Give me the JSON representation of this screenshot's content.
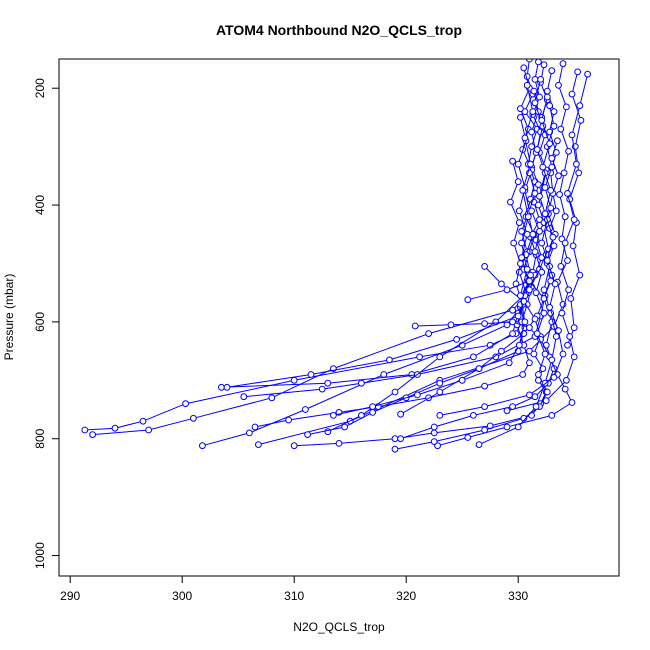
{
  "chart_data": {
    "type": "line",
    "title": "ATOM4 Northbound N2O_QCLS_trop",
    "xlabel": "N2O_QCLS_trop",
    "ylabel": "Pressure (mbar)",
    "xlim": [
      289,
      339
    ],
    "ylim": [
      1035,
      150
    ],
    "y_reversed": true,
    "x_ticks": [
      290,
      300,
      310,
      320,
      330
    ],
    "y_ticks": [
      200,
      400,
      600,
      800,
      1000
    ],
    "colors": {
      "series": "#0000ff",
      "axis": "#000000"
    },
    "marker": "open-circle",
    "series": [
      {
        "x": [
          331.0,
          330.8,
          331.3,
          330.6,
          331.7,
          331.2,
          330.9,
          331.5,
          331.1,
          330.7,
          331.4,
          331.0,
          330.5,
          331.2,
          330.8,
          330.3,
          329.8,
          327.5,
          321.2,
          310.0,
          300.3,
          296.5,
          294.0,
          291.3
        ],
        "y": [
          150,
          180,
          210,
          240,
          270,
          300,
          330,
          360,
          390,
          420,
          450,
          480,
          510,
          540,
          570,
          600,
          620,
          640,
          660,
          700,
          740,
          770,
          782,
          785
        ]
      },
      {
        "x": [
          331.8,
          331.5,
          331.9,
          331.3,
          332.0,
          331.7,
          331.2,
          331.8,
          331.4,
          331.9,
          331.1,
          331.6,
          331.3,
          330.8,
          330.2,
          329.0,
          325.0,
          318.0,
          311.0,
          306.0,
          301.8
        ],
        "y": [
          155,
          185,
          215,
          245,
          275,
          305,
          335,
          365,
          395,
          425,
          455,
          485,
          515,
          545,
          575,
          605,
          640,
          690,
          750,
          790,
          812
        ]
      },
      {
        "x": [
          332.3,
          332.0,
          332.6,
          332.1,
          332.4,
          331.9,
          332.5,
          332.2,
          331.8,
          332.3,
          331.6,
          332.1,
          331.5,
          330.9,
          329.5,
          322.0,
          313.5,
          308.0,
          301.0,
          297.0,
          292.0
        ],
        "y": [
          160,
          190,
          220,
          250,
          280,
          310,
          340,
          370,
          400,
          430,
          460,
          490,
          520,
          550,
          580,
          620,
          680,
          730,
          765,
          785,
          793
        ]
      },
      {
        "x": [
          330.5,
          331.0,
          330.2,
          330.9,
          330.4,
          331.2,
          330.6,
          331.0,
          330.3,
          330.8,
          330.1,
          330.7,
          330.0,
          329.5,
          326.0,
          320.5,
          313.0,
          303.5
        ],
        "y": [
          165,
          200,
          235,
          270,
          305,
          340,
          375,
          410,
          445,
          480,
          515,
          550,
          585,
          620,
          660,
          690,
          705,
          712
        ]
      },
      {
        "x": [
          333.0,
          332.6,
          333.2,
          332.8,
          333.4,
          332.9,
          333.1,
          332.7,
          333.3,
          332.5,
          333.0,
          332.4,
          332.0,
          331.5,
          328.0,
          321.0,
          316.0,
          312.5,
          305.5
        ],
        "y": [
          170,
          205,
          240,
          275,
          310,
          345,
          380,
          415,
          450,
          485,
          520,
          555,
          590,
          625,
          660,
          690,
          705,
          715,
          728
        ]
      },
      {
        "x": [
          334.0,
          333.6,
          334.3,
          333.8,
          334.5,
          334.1,
          333.7,
          334.2,
          333.9,
          334.4,
          333.5,
          334.0,
          333.2,
          331.0,
          323.0,
          315.0,
          306.8
        ],
        "y": [
          158,
          195,
          232,
          270,
          308,
          345,
          382,
          420,
          458,
          495,
          532,
          570,
          608,
          650,
          700,
          770,
          810
        ]
      },
      {
        "x": [
          335.3,
          334.8,
          335.6,
          335.1,
          335.4,
          334.6,
          335.2,
          334.9,
          335.5,
          334.7,
          335.0,
          334.4
        ],
        "y": [
          172,
          210,
          255,
          300,
          345,
          390,
          430,
          470,
          520,
          560,
          610,
          640
        ]
      },
      {
        "x": [
          336.2,
          335.5,
          334.8,
          335.2,
          334.4,
          335.0,
          334.2,
          333.8,
          334.5,
          333.9,
          334.6,
          335.0,
          334.3,
          332.5,
          329.0
        ],
        "y": [
          176,
          230,
          280,
          330,
          380,
          425,
          465,
          505,
          545,
          585,
          625,
          660,
          700,
          735,
          752
        ]
      },
      {
        "x": [
          329.5,
          330.0,
          329.3,
          330.1,
          329.6,
          330.2,
          329.8,
          330.4,
          329.9,
          330.5,
          331.0,
          330.4,
          327.0,
          322.0,
          317.5,
          314.0,
          309.5,
          306.5
        ],
        "y": [
          325,
          360,
          395,
          430,
          465,
          500,
          535,
          570,
          605,
          640,
          670,
          690,
          710,
          730,
          745,
          755,
          768,
          780
        ]
      },
      {
        "x": [
          332.8,
          333.2,
          332.6,
          333.0,
          332.4,
          332.9,
          332.3,
          332.7,
          331.9,
          331.0,
          328.0,
          323.0,
          319.0,
          316.0,
          313.0
        ],
        "y": [
          230,
          265,
          300,
          335,
          370,
          405,
          440,
          475,
          510,
          545,
          600,
          660,
          720,
          760,
          788
        ]
      },
      {
        "x": [
          331.4,
          331.8,
          331.2,
          331.6,
          331.0,
          331.5,
          330.9,
          331.3,
          330.7,
          331.1,
          330.6,
          330.0,
          324.5,
          318.5,
          311.5,
          304.0
        ],
        "y": [
          205,
          240,
          275,
          310,
          345,
          380,
          415,
          450,
          485,
          520,
          555,
          590,
          630,
          665,
          690,
          712
        ]
      },
      {
        "x": [
          330.2,
          330.7,
          330.0,
          330.6,
          330.1,
          330.8,
          330.3,
          330.9,
          330.2,
          330.6,
          330.0,
          326.5,
          323.0,
          320.0,
          317.0,
          314.5,
          311.2
        ],
        "y": [
          250,
          290,
          330,
          370,
          410,
          450,
          490,
          530,
          570,
          610,
          650,
          680,
          705,
          730,
          755,
          780,
          793
        ]
      },
      {
        "x": [
          333.5,
          333.0,
          333.6,
          333.1,
          333.4,
          332.8,
          333.2,
          332.6,
          332.9,
          332.3,
          331.7,
          330.5,
          328.5,
          326.5,
          323.0,
          319.5
        ],
        "y": [
          290,
          320,
          350,
          380,
          410,
          440,
          470,
          500,
          530,
          560,
          590,
          620,
          650,
          680,
          720,
          758
        ]
      },
      {
        "x": [
          327.0,
          328.5,
          330.5,
          331.5,
          332.0,
          331.4,
          332.2,
          331.8,
          332.5,
          332.0,
          331.2,
          327.5,
          322.5,
          319.0,
          314.0,
          310.0
        ],
        "y": [
          505,
          535,
          565,
          595,
          625,
          655,
          680,
          700,
          720,
          740,
          760,
          778,
          790,
          800,
          808,
          812
        ]
      },
      {
        "x": [
          325.5,
          329.0,
          331.0,
          332.3,
          333.0,
          332.5,
          333.2,
          332.7,
          331.5,
          329.5,
          326.0,
          322.5,
          319.5
        ],
        "y": [
          562,
          545,
          530,
          560,
          600,
          640,
          680,
          705,
          728,
          745,
          760,
          780,
          800
        ]
      },
      {
        "x": [
          320.8,
          324.0,
          327.0,
          329.5,
          331.0,
          332.0,
          332.8,
          333.5,
          334.2,
          334.8,
          333.0,
          329.0,
          325.5,
          322.8
        ],
        "y": [
          607,
          605,
          603,
          600,
          610,
          630,
          660,
          690,
          715,
          738,
          760,
          780,
          798,
          812
        ]
      },
      {
        "x": [
          331.2,
          331.9,
          331.5,
          332.1,
          331.6,
          332.3,
          331.7,
          332.4,
          331.8,
          332.6,
          331.9,
          330.5,
          327.0,
          322.5,
          319.0
        ],
        "y": [
          410,
          445,
          480,
          515,
          550,
          585,
          620,
          655,
          690,
          720,
          745,
          765,
          785,
          805,
          818
        ]
      },
      {
        "x": [
          332.0,
          331.5,
          332.2,
          331.7,
          332.4,
          331.9,
          332.6,
          332.1,
          332.8,
          332.3,
          332.9,
          333.4,
          333.0,
          332.4,
          331.6,
          330.0,
          326.5
        ],
        "y": [
          185,
          225,
          265,
          305,
          345,
          385,
          425,
          465,
          505,
          545,
          585,
          625,
          665,
          705,
          745,
          780,
          810
        ]
      },
      {
        "x": [
          330.8,
          331.3,
          330.6,
          331.1,
          330.4,
          330.9,
          330.3,
          330.8,
          330.2,
          330.6,
          330.1,
          329.2,
          325.0,
          321.0,
          317.0,
          313.5
        ],
        "y": [
          195,
          240,
          285,
          330,
          375,
          420,
          465,
          510,
          555,
          600,
          640,
          670,
          700,
          725,
          745,
          760
        ]
      },
      {
        "x": [
          332.6,
          332.1,
          332.8,
          332.2,
          332.9,
          332.4,
          333.1,
          332.6,
          333.3,
          332.8,
          333.6,
          334.0,
          333.2,
          331.0,
          327.0,
          323.0
        ],
        "y": [
          215,
          255,
          295,
          335,
          375,
          415,
          455,
          495,
          535,
          575,
          615,
          655,
          695,
          725,
          745,
          760
        ]
      }
    ]
  }
}
